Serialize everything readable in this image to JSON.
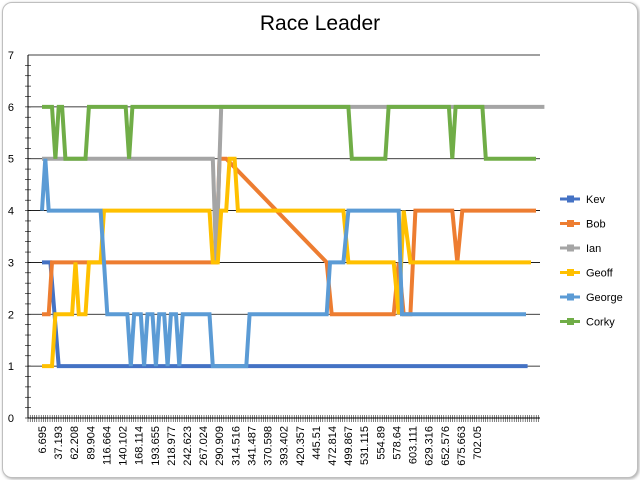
{
  "chart_data": {
    "type": "line",
    "title": "Race Leader",
    "xlabel": "",
    "ylabel": "",
    "ylim": [
      0,
      7
    ],
    "y_ticks": [
      "0",
      "1",
      "2",
      "3",
      "4",
      "5",
      "6",
      "7"
    ],
    "x_tick_labels": [
      "6.695",
      "37.193",
      "62.208",
      "89.904",
      "116.664",
      "140.102",
      "168.114",
      "193.655",
      "218.977",
      "242.623",
      "267.024",
      "290.909",
      "314.516",
      "341.487",
      "370.598",
      "393.402",
      "420.357",
      "445.51",
      "472.814",
      "499.867",
      "531.115",
      "554.89",
      "578.64",
      "603.111",
      "629.316",
      "652.576",
      "675.663",
      "702.05"
    ],
    "x_range_label_index": [
      0,
      29.5
    ],
    "grid": "horizontal",
    "legend_position": "right",
    "series": [
      {
        "name": "Kev",
        "color": "#4472c4",
        "points": [
          [
            0,
            3
          ],
          [
            0.5,
            3
          ],
          [
            1.0,
            1
          ],
          [
            9,
            1
          ],
          [
            10,
            1
          ],
          [
            15,
            1
          ],
          [
            29,
            1
          ]
        ]
      },
      {
        "name": "Bob",
        "color": "#ed7d31",
        "points": [
          [
            0,
            2
          ],
          [
            0.4,
            2
          ],
          [
            0.6,
            3
          ],
          [
            10,
            3
          ],
          [
            10.4,
            3
          ],
          [
            10.6,
            5
          ],
          [
            11,
            5
          ],
          [
            17,
            3
          ],
          [
            17.3,
            2
          ],
          [
            21,
            2
          ],
          [
            21.3,
            3
          ],
          [
            21.6,
            2
          ],
          [
            22,
            2
          ],
          [
            22.3,
            4
          ],
          [
            24.5,
            4
          ],
          [
            24.8,
            3
          ],
          [
            25.1,
            4
          ],
          [
            29.5,
            4
          ]
        ]
      },
      {
        "name": "Ian",
        "color": "#a5a5a5",
        "points": [
          [
            0,
            5
          ],
          [
            10.2,
            5
          ],
          [
            10.4,
            3
          ],
          [
            10.7,
            6
          ],
          [
            30,
            6
          ]
        ]
      },
      {
        "name": "Geoff",
        "color": "#ffc000",
        "points": [
          [
            0,
            1
          ],
          [
            0.6,
            1
          ],
          [
            0.8,
            2
          ],
          [
            1.8,
            2
          ],
          [
            2,
            3
          ],
          [
            2.2,
            2
          ],
          [
            2.6,
            2
          ],
          [
            2.8,
            3
          ],
          [
            3.5,
            3
          ],
          [
            3.7,
            4
          ],
          [
            10,
            4
          ],
          [
            10.2,
            3
          ],
          [
            10.5,
            3
          ],
          [
            10.7,
            4
          ],
          [
            11,
            4
          ],
          [
            11.2,
            5
          ],
          [
            11.5,
            5
          ],
          [
            11.7,
            4
          ],
          [
            18,
            4
          ],
          [
            18.3,
            3
          ],
          [
            21,
            3
          ],
          [
            21.3,
            2
          ],
          [
            21.6,
            4
          ],
          [
            22,
            3
          ],
          [
            29.2,
            3
          ]
        ]
      },
      {
        "name": "George",
        "color": "#5b9bd5",
        "points": [
          [
            0,
            4
          ],
          [
            0.2,
            5
          ],
          [
            0.4,
            4
          ],
          [
            3.5,
            4
          ],
          [
            3.7,
            3
          ],
          [
            3.9,
            2
          ],
          [
            5.1,
            2
          ],
          [
            5.3,
            1
          ],
          [
            5.5,
            2
          ],
          [
            5.9,
            2
          ],
          [
            6.1,
            1
          ],
          [
            6.3,
            2
          ],
          [
            6.6,
            2
          ],
          [
            6.8,
            1
          ],
          [
            7.0,
            2
          ],
          [
            7.3,
            2
          ],
          [
            7.5,
            1
          ],
          [
            7.7,
            2
          ],
          [
            8,
            2
          ],
          [
            8.2,
            1
          ],
          [
            8.4,
            2
          ],
          [
            10,
            2
          ],
          [
            10.2,
            1
          ],
          [
            12.2,
            1
          ],
          [
            12.4,
            2
          ],
          [
            17,
            2
          ],
          [
            17.2,
            3
          ],
          [
            18,
            3
          ],
          [
            18.3,
            4
          ],
          [
            21.3,
            4
          ],
          [
            21.5,
            2
          ],
          [
            28.9,
            2
          ]
        ]
      },
      {
        "name": "Corky",
        "color": "#70ad47",
        "points": [
          [
            0,
            6
          ],
          [
            0.6,
            6
          ],
          [
            0.8,
            5
          ],
          [
            1,
            6
          ],
          [
            1.2,
            6
          ],
          [
            1.4,
            5
          ],
          [
            2.6,
            5
          ],
          [
            2.8,
            6
          ],
          [
            5,
            6
          ],
          [
            5.2,
            5
          ],
          [
            5.4,
            6
          ],
          [
            18.3,
            6
          ],
          [
            18.5,
            5
          ],
          [
            20.5,
            5
          ],
          [
            20.7,
            6
          ],
          [
            24.3,
            6
          ],
          [
            24.5,
            5
          ],
          [
            24.7,
            6
          ],
          [
            26.3,
            6
          ],
          [
            26.5,
            5
          ],
          [
            29.5,
            5
          ]
        ]
      }
    ]
  }
}
